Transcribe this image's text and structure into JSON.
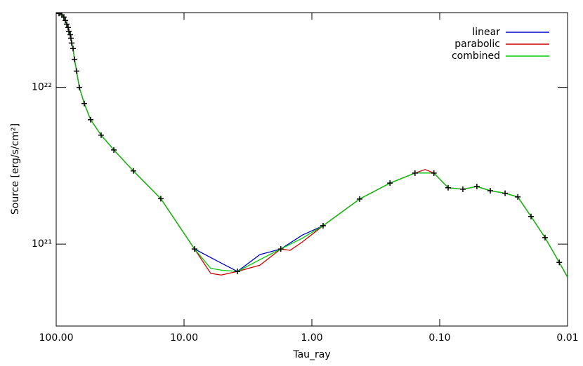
{
  "chart_data": {
    "type": "line",
    "log_x": true,
    "log_y": true,
    "xlabel": "Tau_ray",
    "ylabel": "Source [erg/s/cm²]",
    "xlim": [
      100,
      0.01
    ],
    "xticks": [
      {
        "value": 100,
        "label": "100.00"
      },
      {
        "value": 10,
        "label": "10.00"
      },
      {
        "value": 1,
        "label": "1.00"
      },
      {
        "value": 0.1,
        "label": "0.10"
      },
      0.01
    ],
    "ylim": [
      3e+20,
      3e+22
    ],
    "yticks": [
      {
        "value": 1e+21,
        "label": "10²¹"
      },
      {
        "value": 1e+22,
        "label": "10²²"
      }
    ],
    "legend": "top-right",
    "series": [
      {
        "name": "linear",
        "color": "#0000cc",
        "x": [
          95.1,
          90.3,
          87.1,
          84.8,
          82.7,
          80.7,
          79.6,
          77.6,
          76.7,
          75.7,
          73.8,
          71.9,
          69.3,
          65.9,
          60.3,
          53.8,
          44.5,
          35.4,
          24.9,
          15.2,
          8.28,
          5.12,
          3.82,
          2.55,
          1.75,
          1.19,
          0.817,
          0.423,
          0.245,
          0.156,
          0.111,
          0.0859,
          0.0659,
          0.0512,
          0.0402,
          0.0308,
          0.0245,
          0.0193,
          0.015,
          0.0116,
          0.01
        ],
        "values": [
          2.96e+22,
          2.9e+22,
          2.81e+22,
          2.67e+22,
          2.53e+22,
          2.41e+22,
          2.28e+22,
          2.17e+22,
          2.06e+22,
          1.92e+22,
          1.77e+22,
          1.51e+22,
          1.27e+22,
          1e+22,
          7.89e+21,
          6.22e+21,
          4.96e+21,
          3.99e+21,
          2.93e+21,
          1.95e+21,
          9.31e+20,
          7.57e+20,
          6.69e+20,
          8.57e+20,
          9.31e+20,
          1.14e+21,
          1.31e+21,
          1.94e+21,
          2.45e+21,
          2.84e+21,
          2.84e+21,
          2.29e+21,
          2.24e+21,
          2.33e+21,
          2.19e+21,
          2.11e+21,
          2e+21,
          1.5e+21,
          1.1e+21,
          7.64e+20,
          6.15e+20
        ]
      },
      {
        "name": "parabolic",
        "color": "#cc0000",
        "x": [
          95.1,
          90.3,
          87.1,
          84.8,
          82.7,
          80.7,
          79.6,
          77.6,
          76.7,
          75.7,
          73.8,
          71.9,
          69.3,
          65.9,
          60.3,
          53.8,
          44.5,
          35.4,
          24.9,
          15.2,
          8.28,
          6.18,
          5.12,
          3.82,
          2.55,
          1.75,
          1.48,
          1.19,
          0.817,
          0.423,
          0.245,
          0.156,
          0.13,
          0.111,
          0.0859,
          0.0659,
          0.0512,
          0.0402,
          0.0308,
          0.0245,
          0.0193,
          0.015,
          0.0116,
          0.01
        ],
        "values": [
          2.96e+22,
          2.9e+22,
          2.81e+22,
          2.67e+22,
          2.53e+22,
          2.41e+22,
          2.28e+22,
          2.17e+22,
          2.06e+22,
          1.92e+22,
          1.77e+22,
          1.51e+22,
          1.27e+22,
          1e+22,
          7.89e+21,
          6.22e+21,
          4.96e+21,
          3.99e+21,
          2.93e+21,
          1.95e+21,
          9.31e+20,
          6.5e+20,
          6.35e+20,
          6.69e+20,
          7.33e+20,
          9.31e+20,
          9.12e+20,
          1.03e+21,
          1.31e+21,
          1.94e+21,
          2.45e+21,
          2.84e+21,
          2.99e+21,
          2.84e+21,
          2.29e+21,
          2.24e+21,
          2.33e+21,
          2.19e+21,
          2.11e+21,
          2e+21,
          1.5e+21,
          1.1e+21,
          7.64e+20,
          6.15e+20
        ]
      },
      {
        "name": "combined",
        "color": "#00cc00",
        "x": [
          95.1,
          90.3,
          87.1,
          84.8,
          82.7,
          80.7,
          79.6,
          77.6,
          76.7,
          75.7,
          73.8,
          71.9,
          69.3,
          65.9,
          60.3,
          53.8,
          44.5,
          35.4,
          24.9,
          15.2,
          8.28,
          6.18,
          5.12,
          3.82,
          2.55,
          1.75,
          1.19,
          0.817,
          0.423,
          0.245,
          0.156,
          0.111,
          0.0859,
          0.0659,
          0.0512,
          0.0402,
          0.0308,
          0.0245,
          0.0193,
          0.015,
          0.0116,
          0.01
        ],
        "values": [
          2.96e+22,
          2.9e+22,
          2.81e+22,
          2.67e+22,
          2.53e+22,
          2.41e+22,
          2.28e+22,
          2.17e+22,
          2.06e+22,
          1.92e+22,
          1.77e+22,
          1.51e+22,
          1.27e+22,
          1e+22,
          7.89e+21,
          6.22e+21,
          4.96e+21,
          3.99e+21,
          2.93e+21,
          1.95e+21,
          9.31e+20,
          7e+20,
          6.82e+20,
          6.69e+20,
          7.96e+20,
          9.31e+20,
          1.09e+21,
          1.31e+21,
          1.94e+21,
          2.45e+21,
          2.84e+21,
          2.84e+21,
          2.29e+21,
          2.24e+21,
          2.33e+21,
          2.19e+21,
          2.11e+21,
          2e+21,
          1.5e+21,
          1.1e+21,
          7.64e+20,
          6.15e+20
        ]
      }
    ],
    "markers": {
      "color": "#000000",
      "x": [
        95.1,
        90.3,
        87.1,
        84.8,
        82.7,
        80.7,
        79.6,
        77.6,
        76.7,
        75.7,
        73.8,
        71.9,
        69.3,
        65.9,
        60.3,
        53.8,
        44.5,
        35.4,
        24.9,
        15.2,
        8.28,
        3.82,
        1.75,
        0.817,
        0.423,
        0.245,
        0.156,
        0.111,
        0.0859,
        0.0659,
        0.0512,
        0.0402,
        0.0308,
        0.0245,
        0.0193,
        0.015,
        0.0116
      ],
      "values": [
        2.96e+22,
        2.9e+22,
        2.81e+22,
        2.67e+22,
        2.53e+22,
        2.41e+22,
        2.28e+22,
        2.17e+22,
        2.06e+22,
        1.92e+22,
        1.77e+22,
        1.51e+22,
        1.27e+22,
        1e+22,
        7.89e+21,
        6.22e+21,
        4.96e+21,
        3.99e+21,
        2.93e+21,
        1.95e+21,
        9.31e+20,
        6.69e+20,
        9.31e+20,
        1.31e+21,
        1.94e+21,
        2.45e+21,
        2.84e+21,
        2.84e+21,
        2.29e+21,
        2.24e+21,
        2.33e+21,
        2.19e+21,
        2.11e+21,
        2e+21,
        1.5e+21,
        1.1e+21,
        7.64e+20
      ]
    }
  }
}
